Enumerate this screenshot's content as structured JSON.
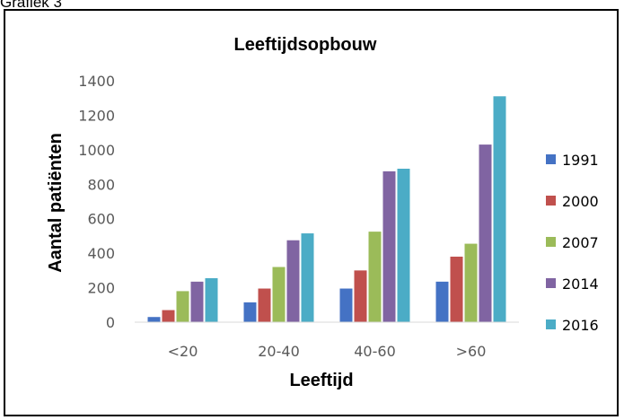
{
  "caption": "Grafiek 3",
  "colors": {
    "1991": "#4472c4",
    "2000": "#c0504d",
    "2007": "#9bbb59",
    "2014": "#8064a2",
    "2016": "#4bacc6"
  },
  "chart_data": {
    "type": "bar",
    "title": "Leeftijdsopbouw",
    "xlabel": "Leeftijd",
    "ylabel": "Aantal patiënten",
    "categories": [
      "<20",
      "20-40",
      "40-60",
      ">60"
    ],
    "ylim": [
      0,
      1400
    ],
    "yticks": [
      0,
      200,
      400,
      600,
      800,
      1000,
      1200,
      1400
    ],
    "grid": false,
    "legend_position": "right",
    "series": [
      {
        "name": "1991",
        "values": [
          30,
          115,
          195,
          235
        ]
      },
      {
        "name": "2000",
        "values": [
          70,
          195,
          300,
          380
        ]
      },
      {
        "name": "2007",
        "values": [
          180,
          320,
          525,
          455
        ]
      },
      {
        "name": "2014",
        "values": [
          235,
          475,
          875,
          1030
        ]
      },
      {
        "name": "2016",
        "values": [
          255,
          515,
          890,
          1310
        ]
      }
    ]
  }
}
